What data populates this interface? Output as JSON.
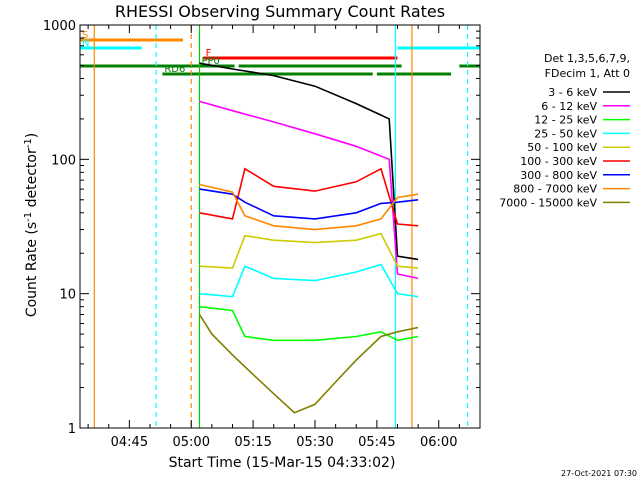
{
  "chart_data": {
    "type": "line",
    "title": "RHESSI Observing Summary Count Rates",
    "xlabel": "Start Time (15-Mar-15 04:33:02)",
    "ylabel": "Count Rate (s^-1 detector^-1)",
    "ylabel_main": "Count Rate (s",
    "ylabel_sup1": "-1",
    "ylabel_mid": " detector",
    "ylabel_sup2": "-1",
    "ylabel_end": ")",
    "y_scale": "log",
    "ylim": [
      1,
      1000
    ],
    "xlim": [
      "04:33:02",
      "06:10:00"
    ],
    "x_ticks": [
      "04:45",
      "05:00",
      "05:15",
      "05:30",
      "05:45",
      "06:00"
    ],
    "y_ticks": [
      "1",
      "10",
      "100",
      "1000"
    ],
    "legend_header": [
      "Det 1,3,5,6,7,9,",
      "FDecim 1, Att 0"
    ],
    "legend_position": "right",
    "timestamp": "27-Oct-2021 07:30",
    "series": [
      {
        "name": "3 - 6 keV",
        "color": "#000000",
        "x": [
          "05:02",
          "05:10",
          "05:20",
          "05:30",
          "05:40",
          "05:48",
          "05:50",
          "05:55"
        ],
        "values": [
          520,
          470,
          420,
          350,
          260,
          200,
          19,
          18
        ]
      },
      {
        "name": "6 - 12 keV",
        "color": "#ff00ff",
        "x": [
          "05:02",
          "05:10",
          "05:20",
          "05:30",
          "05:40",
          "05:48",
          "05:50",
          "05:55"
        ],
        "values": [
          270,
          230,
          190,
          155,
          125,
          100,
          14,
          13
        ]
      },
      {
        "name": "12 - 25 keV",
        "color": "#00ff00",
        "x": [
          "05:02",
          "05:10",
          "05:13",
          "05:20",
          "05:30",
          "05:40",
          "05:46",
          "05:50",
          "05:55"
        ],
        "values": [
          8,
          7.5,
          4.8,
          4.5,
          4.5,
          4.8,
          5.2,
          4.5,
          4.8
        ]
      },
      {
        "name": "25 - 50 keV",
        "color": "#00ffff",
        "x": [
          "05:02",
          "05:10",
          "05:13",
          "05:20",
          "05:30",
          "05:40",
          "05:46",
          "05:50",
          "05:55"
        ],
        "values": [
          10,
          9.5,
          16,
          13,
          12.5,
          14.5,
          16.5,
          10,
          9.5
        ]
      },
      {
        "name": "50 - 100 keV",
        "color": "#cccc00",
        "x": [
          "05:02",
          "05:10",
          "05:13",
          "05:20",
          "05:30",
          "05:40",
          "05:46",
          "05:50",
          "05:55"
        ],
        "values": [
          16,
          15.5,
          27,
          25,
          24,
          25,
          28,
          16,
          15.5
        ]
      },
      {
        "name": "100 - 300 keV",
        "color": "#ff0000",
        "x": [
          "05:02",
          "05:10",
          "05:13",
          "05:20",
          "05:30",
          "05:40",
          "05:46",
          "05:50",
          "05:55"
        ],
        "values": [
          40,
          36,
          85,
          63,
          58,
          68,
          85,
          33,
          32
        ]
      },
      {
        "name": "300 - 800 keV",
        "color": "#0000ff",
        "x": [
          "05:02",
          "05:10",
          "05:13",
          "05:20",
          "05:30",
          "05:40",
          "05:46",
          "05:50",
          "05:55"
        ],
        "values": [
          60,
          55,
          48,
          38,
          36,
          40,
          47,
          48,
          50
        ]
      },
      {
        "name": "800 - 7000 keV",
        "color": "#ff8800",
        "x": [
          "05:02",
          "05:10",
          "05:13",
          "05:20",
          "05:30",
          "05:40",
          "05:46",
          "05:50",
          "05:55"
        ],
        "values": [
          65,
          57,
          38,
          32,
          30,
          32,
          36,
          52,
          55
        ]
      },
      {
        "name": "7000 - 15000 keV",
        "color": "#808000",
        "x": [
          "05:02",
          "05:05",
          "05:10",
          "05:15",
          "05:20",
          "05:25",
          "05:30",
          "05:35",
          "05:40",
          "05:46",
          "05:50",
          "05:55"
        ],
        "values": [
          7,
          5,
          3.5,
          2.5,
          1.8,
          1.3,
          1.5,
          2.2,
          3.2,
          4.8,
          5.2,
          5.6
        ]
      }
    ],
    "flag_bars": [
      {
        "label": "S",
        "color": "#ff8800",
        "start": "04:33:02",
        "end": "04:58:00"
      },
      {
        "label": "N",
        "color": "#00ffff",
        "start": "04:33:02",
        "end": "04:48:00"
      },
      {
        "label": "",
        "color": "#00ffff",
        "start": "05:50:00",
        "end": "06:10:00"
      },
      {
        "label": "F",
        "color": "#ff0000",
        "start": "05:03:00",
        "end": "05:50:00"
      },
      {
        "label": "",
        "color": "#008000",
        "start": "04:33:02",
        "end": "05:02:00"
      },
      {
        "label": "PP0",
        "color": "#008000",
        "start": "05:02:00",
        "end": "05:10:30"
      },
      {
        "label": "",
        "color": "#008000",
        "start": "05:11:30",
        "end": "05:51:00"
      },
      {
        "label": "",
        "color": "#008000",
        "start": "06:05:00",
        "end": "06:10:00"
      },
      {
        "label": "RD6",
        "color": "#008000",
        "start": "04:53:00",
        "end": "05:44:00"
      },
      {
        "label": "",
        "color": "#008000",
        "start": "05:45:00",
        "end": "06:03:00"
      }
    ],
    "vertical_lines": [
      {
        "time": "04:36:30",
        "color": "#ff8800",
        "style": "solid"
      },
      {
        "time": "04:51:30",
        "color": "#00ffff",
        "style": "dashed"
      },
      {
        "time": "05:00:00",
        "color": "#ff8800",
        "style": "dashed"
      },
      {
        "time": "05:02:00",
        "color": "#00cc00",
        "style": "solid"
      },
      {
        "time": "05:49:30",
        "color": "#00ffff",
        "style": "solid"
      },
      {
        "time": "05:53:30",
        "color": "#ff8800",
        "style": "solid"
      },
      {
        "time": "06:07:00",
        "color": "#00ffff",
        "style": "dashed"
      }
    ]
  }
}
